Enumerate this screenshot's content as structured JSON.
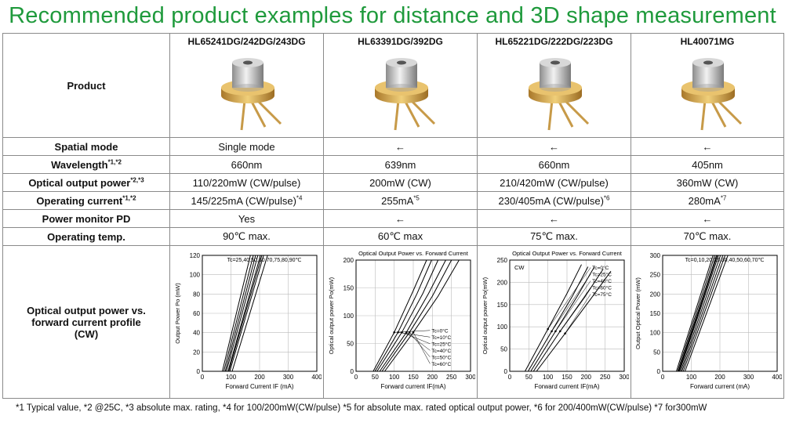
{
  "title": "Recommended product examples for distance and 3D shape measurement",
  "row_labels": {
    "product": "Product",
    "spatial_mode": "Spatial mode",
    "wavelength": "Wavelength",
    "wavelength_sup": "*1,*2",
    "optical_output": "Optical output power",
    "optical_output_sup": "*2,*3",
    "operating_current": "Operating current",
    "operating_current_sup": "*1,*2",
    "power_monitor": "Power monitor PD",
    "operating_temp": "Operating temp.",
    "profile": "Optical output power vs. forward current profile (CW)"
  },
  "products": [
    {
      "name": "HL65241DG/242DG/243DG",
      "spatial_mode": "Single mode",
      "wavelength": "660nm",
      "optical_output": "110/220mW (CW/pulse)",
      "operating_current": "145/225mA (CW/pulse)",
      "operating_current_sup": "*4",
      "power_monitor": "Yes",
      "operating_temp": "90℃ max."
    },
    {
      "name": "HL63391DG/392DG",
      "spatial_mode": "←",
      "wavelength": "639nm",
      "optical_output": "200mW (CW)",
      "operating_current": "255mA",
      "operating_current_sup": "*5",
      "power_monitor": "←",
      "operating_temp": "60℃ max"
    },
    {
      "name": "HL65221DG/222DG/223DG",
      "spatial_mode": "←",
      "wavelength": "660nm",
      "optical_output": "210/420mW  (CW/pulse)",
      "operating_current": "230/405mA (CW/pulse)",
      "operating_current_sup": "*6",
      "power_monitor": "←",
      "operating_temp": "75℃ max."
    },
    {
      "name": "HL40071MG",
      "spatial_mode": "←",
      "wavelength": "405nm",
      "optical_output": "360mW (CW)",
      "operating_current": "280mA",
      "operating_current_sup": "*7",
      "power_monitor": "←",
      "operating_temp": "70℃ max."
    }
  ],
  "footnote": "*1 Typical value, *2 @25C, *3 absolute max. rating, *4 for 100/200mW(CW/pulse) *5 for absolute max. rated optical output power, *6 for 200/400mW(CW/pulse) *7 for300mW",
  "chart_data": [
    {
      "type": "line",
      "legend_text": "Tc=25,40,50,60,70,75,80,90℃",
      "xlabel": "Forward Current IF  (mA)",
      "ylabel": "Output Power Po  (mW)",
      "xlim": [
        0,
        400
      ],
      "ylim": [
        0,
        120
      ],
      "xticks": [
        0,
        100,
        200,
        300,
        400
      ],
      "yticks": [
        0,
        20,
        40,
        60,
        80,
        100,
        120
      ],
      "series": [
        {
          "name": "",
          "x": [
            70,
            168
          ],
          "y": [
            0,
            120
          ]
        },
        {
          "name": "",
          "x": [
            75,
            178
          ],
          "y": [
            0,
            120
          ]
        },
        {
          "name": "",
          "x": [
            80,
            186
          ],
          "y": [
            0,
            120
          ]
        },
        {
          "name": "",
          "x": [
            84,
            194
          ],
          "y": [
            0,
            120
          ]
        },
        {
          "name": "",
          "x": [
            90,
            203
          ],
          "y": [
            0,
            120
          ]
        },
        {
          "name": "",
          "x": [
            92,
            208
          ],
          "y": [
            0,
            120
          ]
        },
        {
          "name": "",
          "x": [
            96,
            214
          ],
          "y": [
            0,
            120
          ]
        },
        {
          "name": "",
          "x": [
            104,
            228
          ],
          "y": [
            0,
            120
          ]
        }
      ]
    },
    {
      "type": "line",
      "title": "Optical Output Power vs. Forward Current",
      "xlabel": "Forward current IF(mA)",
      "ylabel": "Optical output power Po(mW)",
      "xlim": [
        0,
        300
      ],
      "ylim": [
        0,
        200
      ],
      "xticks": [
        0,
        50,
        100,
        150,
        200,
        250,
        300
      ],
      "yticks": [
        0,
        50,
        100,
        150,
        200
      ],
      "series": [
        {
          "name": "Tc=0°C",
          "x": [
            45,
            100,
            150,
            185
          ],
          "y": [
            0,
            70,
            145,
            200
          ]
        },
        {
          "name": "Tc=10°C",
          "x": [
            50,
            110,
            160,
            198
          ],
          "y": [
            0,
            70,
            140,
            200
          ]
        },
        {
          "name": "Tc=25°C",
          "x": [
            55,
            120,
            175,
            215
          ],
          "y": [
            0,
            70,
            140,
            200
          ]
        },
        {
          "name": "Tc=40°C",
          "x": [
            62,
            132,
            190,
            235
          ],
          "y": [
            0,
            70,
            140,
            200
          ]
        },
        {
          "name": "Tc=50°C",
          "x": [
            68,
            140,
            200,
            250
          ],
          "y": [
            0,
            70,
            135,
            200
          ]
        },
        {
          "name": "Tc=60°C",
          "x": [
            75,
            150,
            215,
            270
          ],
          "y": [
            0,
            70,
            135,
            200
          ]
        }
      ]
    },
    {
      "type": "line",
      "title": "Optical Output Power vs. Forward Current",
      "annotation": "CW",
      "xlabel": "Forward current IF(mA)",
      "ylabel": "Optical output power Po(mW)",
      "xlim": [
        0,
        300
      ],
      "ylim": [
        0,
        250
      ],
      "xticks": [
        0,
        50,
        100,
        150,
        200,
        250,
        300
      ],
      "yticks": [
        0,
        50,
        100,
        150,
        200,
        250
      ],
      "series": [
        {
          "name": "Tc=0°C",
          "x": [
            40,
            100,
            150,
            188
          ],
          "y": [
            0,
            95,
            175,
            240
          ]
        },
        {
          "name": "Tc=25°C",
          "x": [
            48,
            110,
            165,
            205
          ],
          "y": [
            0,
            90,
            170,
            235
          ]
        },
        {
          "name": "Tc=40°C",
          "x": [
            55,
            120,
            178,
            222
          ],
          "y": [
            0,
            90,
            170,
            235
          ]
        },
        {
          "name": "Tc=60°C",
          "x": [
            62,
            132,
            195,
            245
          ],
          "y": [
            0,
            90,
            165,
            230
          ]
        },
        {
          "name": "Tc=75°C",
          "x": [
            70,
            145,
            210,
            265
          ],
          "y": [
            0,
            85,
            160,
            225
          ]
        }
      ]
    },
    {
      "type": "line",
      "legend_text": "Tc=0,10,20,25,30,40,50,60,70℃",
      "xlabel": "Forward current (mA)",
      "ylabel": "Output Optical Power (mW)",
      "xlim": [
        0,
        400
      ],
      "ylim": [
        0,
        300
      ],
      "xticks": [
        0,
        100,
        200,
        300,
        400
      ],
      "yticks": [
        0,
        50,
        100,
        150,
        200,
        250,
        300
      ],
      "series": [
        {
          "name": "",
          "x": [
            48,
            176
          ],
          "y": [
            0,
            300
          ]
        },
        {
          "name": "",
          "x": [
            52,
            182
          ],
          "y": [
            0,
            300
          ]
        },
        {
          "name": "",
          "x": [
            55,
            188
          ],
          "y": [
            0,
            300
          ]
        },
        {
          "name": "",
          "x": [
            57,
            191
          ],
          "y": [
            0,
            300
          ]
        },
        {
          "name": "",
          "x": [
            59,
            195
          ],
          "y": [
            0,
            300
          ]
        },
        {
          "name": "",
          "x": [
            63,
            202
          ],
          "y": [
            0,
            300
          ]
        },
        {
          "name": "",
          "x": [
            67,
            210
          ],
          "y": [
            0,
            300
          ]
        },
        {
          "name": "",
          "x": [
            72,
            218
          ],
          "y": [
            0,
            300
          ]
        },
        {
          "name": "",
          "x": [
            78,
            228
          ],
          "y": [
            0,
            300
          ]
        }
      ]
    }
  ]
}
